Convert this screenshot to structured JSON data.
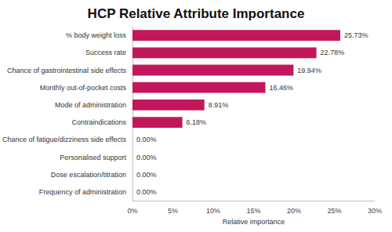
{
  "chart_data": {
    "type": "bar",
    "orientation": "horizontal",
    "title": "HCP Relative Attribute Importance",
    "x_label": "Relative importance",
    "categories": [
      "% body weight loss",
      "Success rate",
      "Chance of gastrointestinal side effects",
      "Monthly out-of-pocket costs",
      "Mode of administration",
      "Contraindications",
      "Chance of fatigue/dizziness side effects",
      "Personalised support",
      "Dose escalation/titration",
      "Frequency of administration"
    ],
    "values": [
      25.73,
      22.78,
      19.94,
      16.46,
      8.91,
      6.18,
      0.0,
      0.0,
      0.0,
      0.0
    ],
    "value_labels": [
      "25.73%",
      "22.78%",
      "19.94%",
      "16.46%",
      "8.91%",
      "6.18%",
      "0.00%",
      "0.00%",
      "0.00%",
      "0.00%"
    ],
    "data_labels": true,
    "color": "#c2185b",
    "xlim": [
      0,
      30
    ],
    "xticks": [
      {
        "value": 0,
        "label": "0%"
      },
      {
        "value": 5,
        "label": "5%"
      },
      {
        "value": 10,
        "label": "10%"
      },
      {
        "value": 15,
        "label": "15%"
      },
      {
        "value": 20,
        "label": "20%"
      },
      {
        "value": 25,
        "label": "25%"
      },
      {
        "value": 30,
        "label": "30%"
      }
    ],
    "grid": false
  }
}
